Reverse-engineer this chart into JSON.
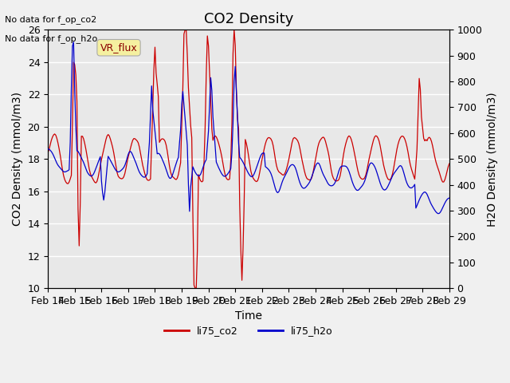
{
  "title": "CO2 Density",
  "xlabel": "Time",
  "ylabel_left": "CO2 Density (mmol/m3)",
  "ylabel_right": "H2O Density (mmol/m3)",
  "ylim_left": [
    10,
    26
  ],
  "ylim_right": [
    0,
    1000
  ],
  "xlim": [
    0,
    360
  ],
  "xtick_positions": [
    0,
    24,
    48,
    72,
    96,
    120,
    144,
    168,
    192,
    216,
    240,
    264,
    288,
    312,
    336,
    360
  ],
  "xtick_labels": [
    "Feb 14",
    "Feb 15",
    "Feb 16",
    "Feb 17",
    "Feb 18",
    "Feb 19",
    "Feb 20",
    "Feb 21",
    "Feb 22",
    "Feb 23",
    "Feb 24",
    "Feb 25",
    "Feb 26",
    "Feb 27",
    "Feb 28",
    "Feb 29"
  ],
  "no_data_text1": "No data for f_op_co2",
  "no_data_text2": "No data for f_op_h2o",
  "vr_flux_label": "VR_flux",
  "legend_entries": [
    "li75_co2",
    "li75_h2o"
  ],
  "line_colors": [
    "#cc0000",
    "#0000cc"
  ],
  "background_color": "#e8e8e8",
  "grid_color": "#ffffff",
  "title_fontsize": 13,
  "axis_label_fontsize": 10,
  "tick_fontsize": 9
}
